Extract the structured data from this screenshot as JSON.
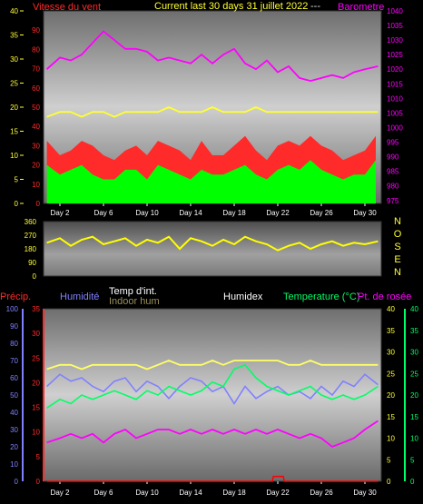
{
  "header": {
    "wind_label": "Vitesse du vent",
    "title": "Current last 30 days 31 juillet 2022",
    "separator": "---",
    "baro_label": "Barometre"
  },
  "colors": {
    "wind": "#ff2a2a",
    "gust": "#00ff00",
    "baro": "#ff00ff",
    "temp": "#ffff33",
    "rain": "#ff0000",
    "humidity": "#8080ff",
    "temp_in": "#ffff66",
    "hum_in": "#9b8f5a",
    "humidex": "#ffffff",
    "temperature": "#00ff66",
    "dewpoint": "#ff00ff",
    "dir": "#ffff00"
  },
  "icons": [
    "compass-direction-letters"
  ],
  "chart_data": [
    {
      "type": "area",
      "title": "Vitesse du vent / Barometre",
      "x_ticks": [
        "Day 2",
        "Day 6",
        "Day 10",
        "Day 14",
        "Day 18",
        "Day 22",
        "Day 26",
        "Day 30"
      ],
      "x_range": [
        0.5,
        31.5
      ],
      "left_axis": {
        "label": "Vitesse du vent",
        "ticks": [
          0,
          5,
          10,
          15,
          20,
          25,
          30,
          35,
          40
        ],
        "range": [
          0,
          40
        ]
      },
      "mid_axis": {
        "ticks": [
          0,
          10,
          20,
          30,
          40,
          50,
          60,
          70,
          80,
          90
        ],
        "range": [
          0,
          100
        ]
      },
      "right_axis": {
        "label": "Barometre",
        "ticks": [
          975,
          980,
          985,
          990,
          995,
          1000,
          1005,
          1010,
          1015,
          1020,
          1025,
          1030,
          1035,
          1040
        ],
        "range": [
          974,
          1040
        ]
      },
      "series": [
        {
          "name": "gust",
          "day": [
            0.8,
            2,
            3,
            4,
            5,
            6,
            7,
            8,
            9,
            10,
            11,
            12,
            13,
            14,
            15,
            16,
            17,
            18,
            19,
            20,
            21,
            22,
            23,
            24,
            25,
            26,
            27,
            28,
            29,
            30,
            31
          ],
          "values": [
            13,
            10,
            11,
            13,
            12,
            10,
            9,
            11,
            12,
            10,
            13,
            12,
            11,
            9,
            13,
            10,
            10,
            12,
            14,
            11,
            9,
            12,
            13,
            12,
            14,
            12,
            11,
            9,
            10,
            11,
            14
          ]
        },
        {
          "name": "wind",
          "day": [
            0.8,
            2,
            3,
            4,
            5,
            6,
            7,
            8,
            9,
            10,
            11,
            12,
            13,
            14,
            15,
            16,
            17,
            18,
            19,
            20,
            21,
            22,
            23,
            24,
            25,
            26,
            27,
            28,
            29,
            30,
            31
          ],
          "values": [
            8,
            6,
            7,
            8,
            6,
            5,
            5,
            7,
            7,
            5,
            8,
            7,
            6,
            5,
            7,
            6,
            6,
            7,
            8,
            6,
            5,
            7,
            8,
            7,
            9,
            7,
            6,
            5,
            6,
            6,
            9
          ]
        },
        {
          "name": "barometer",
          "day": [
            0.8,
            2,
            3,
            4,
            5,
            6,
            7,
            8,
            9,
            10,
            11,
            12,
            13,
            14,
            15,
            16,
            17,
            18,
            19,
            20,
            21,
            22,
            23,
            24,
            25,
            26,
            27,
            28,
            29,
            30,
            31.2
          ],
          "values": [
            1020,
            1024,
            1023,
            1025,
            1029,
            1033,
            1030,
            1027,
            1027,
            1026,
            1023,
            1024,
            1023,
            1022,
            1025,
            1022,
            1025,
            1027,
            1022,
            1020,
            1023,
            1019,
            1021,
            1017,
            1016,
            1017,
            1018,
            1017,
            1019,
            1020,
            1021
          ]
        },
        {
          "name": "temperature_top",
          "day": [
            0.8,
            2,
            3,
            4,
            5,
            6,
            7,
            8,
            9,
            10,
            11,
            12,
            13,
            14,
            15,
            16,
            17,
            18,
            19,
            20,
            21,
            22,
            23,
            24,
            25,
            26,
            27,
            28,
            29,
            30,
            31.2
          ],
          "values": [
            18,
            19,
            19,
            18,
            19,
            19,
            18,
            19,
            19,
            19,
            19,
            20,
            19,
            19,
            19,
            20,
            19,
            19,
            19,
            20,
            19,
            19,
            19,
            19,
            19,
            19,
            19,
            19,
            19,
            19,
            19
          ]
        }
      ]
    },
    {
      "type": "line",
      "title": "Direction",
      "x_range": [
        0.5,
        31.5
      ],
      "left_axis": {
        "ticks": [
          0,
          90,
          180,
          270,
          360
        ],
        "range": [
          0,
          360
        ]
      },
      "right_labels": [
        "N",
        "O",
        "S",
        "E",
        "N"
      ],
      "series": [
        {
          "name": "direction",
          "day": [
            0.8,
            2,
            3,
            4,
            5,
            6,
            7,
            8,
            9,
            10,
            11,
            12,
            13,
            14,
            15,
            16,
            17,
            18,
            19,
            20,
            21,
            22,
            23,
            24,
            25,
            26,
            27,
            28,
            29,
            30,
            31.2
          ],
          "values": [
            220,
            250,
            200,
            240,
            260,
            210,
            230,
            250,
            200,
            240,
            220,
            260,
            180,
            250,
            230,
            200,
            240,
            210,
            260,
            230,
            210,
            170,
            200,
            220,
            180,
            210,
            230,
            200,
            220,
            210,
            230
          ]
        }
      ]
    },
    {
      "type": "line",
      "labels": {
        "precip": "Précip.",
        "humidity": "Humidité",
        "temp_in": "Temp d'int.",
        "hum_in": "Indoor hum",
        "humidex": "Humidex",
        "temperature": "Temperature (°C)",
        "dewpoint": "Pt. de rosée"
      },
      "x_ticks": [
        "Day 2",
        "Day 6",
        "Day 10",
        "Day 14",
        "Day 18",
        "Day 22",
        "Day 26",
        "Day 30"
      ],
      "x_range": [
        0.5,
        31.5
      ],
      "humidity_axis": {
        "ticks": [
          0,
          10,
          20,
          30,
          40,
          50,
          60,
          70,
          80,
          90,
          100
        ],
        "range": [
          0,
          100
        ]
      },
      "precip_axis": {
        "ticks": [
          0,
          5,
          10,
          15,
          20,
          25,
          30,
          35
        ],
        "range": [
          0,
          35
        ]
      },
      "temp_axis": {
        "ticks": [
          0,
          5,
          10,
          15,
          20,
          25,
          30,
          35,
          40
        ],
        "range": [
          0,
          40
        ]
      },
      "series": [
        {
          "name": "humidity",
          "day": [
            0.8,
            2,
            3,
            4,
            5,
            6,
            7,
            8,
            9,
            10,
            11,
            12,
            13,
            14,
            15,
            16,
            17,
            18,
            19,
            20,
            21,
            22,
            23,
            24,
            25,
            26,
            27,
            28,
            29,
            30,
            31.2
          ],
          "values": [
            55,
            62,
            58,
            60,
            55,
            52,
            58,
            60,
            52,
            58,
            55,
            48,
            55,
            60,
            58,
            52,
            55,
            45,
            55,
            48,
            52,
            55,
            50,
            52,
            48,
            55,
            50,
            58,
            55,
            62,
            56
          ]
        },
        {
          "name": "temperature",
          "day": [
            0.8,
            2,
            3,
            4,
            5,
            6,
            7,
            8,
            9,
            10,
            11,
            12,
            13,
            14,
            15,
            16,
            17,
            18,
            19,
            20,
            21,
            22,
            23,
            24,
            25,
            26,
            27,
            28,
            29,
            30,
            31.2
          ],
          "values": [
            17,
            19,
            18,
            20,
            19,
            20,
            21,
            20,
            19,
            21,
            20,
            22,
            21,
            20,
            21,
            23,
            22,
            26,
            27,
            24,
            22,
            21,
            20,
            21,
            22,
            20,
            19,
            20,
            19,
            20,
            22
          ]
        },
        {
          "name": "temp_in",
          "day": [
            0.8,
            2,
            3,
            4,
            5,
            6,
            7,
            8,
            9,
            10,
            11,
            12,
            13,
            14,
            15,
            16,
            17,
            18,
            19,
            20,
            21,
            22,
            23,
            24,
            25,
            26,
            27,
            28,
            29,
            30,
            31.2
          ],
          "values": [
            26,
            27,
            27,
            26,
            27,
            27,
            27,
            27,
            27,
            26,
            27,
            28,
            27,
            27,
            27,
            28,
            27,
            28,
            28,
            28,
            28,
            28,
            27,
            27,
            28,
            27,
            27,
            27,
            27,
            27,
            27
          ]
        },
        {
          "name": "dewpoint",
          "day": [
            0.8,
            2,
            3,
            4,
            5,
            6,
            7,
            8,
            9,
            10,
            11,
            12,
            13,
            14,
            15,
            16,
            17,
            18,
            19,
            20,
            21,
            22,
            23,
            24,
            25,
            26,
            27,
            28,
            29,
            30,
            31.2
          ],
          "values": [
            9,
            10,
            11,
            10,
            11,
            9,
            11,
            12,
            10,
            11,
            12,
            12,
            11,
            12,
            11,
            12,
            11,
            12,
            11,
            12,
            11,
            12,
            11,
            10,
            11,
            10,
            8,
            9,
            10,
            12,
            14
          ]
        },
        {
          "name": "precip",
          "day": [
            0.8,
            21.5,
            21.6,
            22.5,
            22.6,
            31.2
          ],
          "values": [
            0,
            0,
            1,
            1,
            0,
            0
          ]
        }
      ]
    }
  ]
}
